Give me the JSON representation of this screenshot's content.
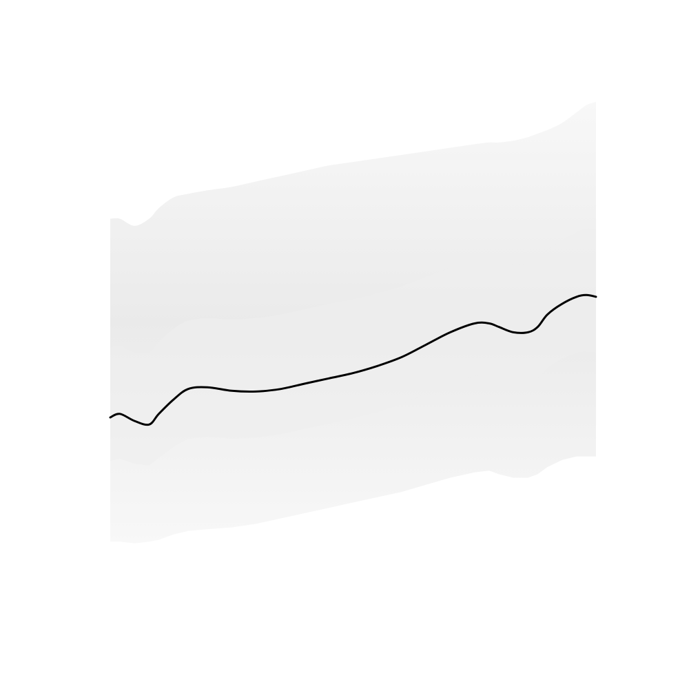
{
  "chart_data": {
    "type": "line",
    "title": "",
    "xlabel": "",
    "ylabel": "",
    "grid": false,
    "axes_visible": false,
    "legend": "none",
    "xlim": [
      0,
      1
    ],
    "ylim": [
      0,
      1
    ],
    "series": [
      {
        "line_color": "#000000",
        "x": [
          0.0,
          0.02,
          0.05,
          0.08,
          0.1,
          0.13,
          0.16,
          0.2,
          0.25,
          0.3,
          0.35,
          0.4,
          0.45,
          0.5,
          0.55,
          0.6,
          0.65,
          0.7,
          0.75,
          0.78,
          0.8,
          0.83,
          0.86,
          0.88,
          0.9,
          0.93,
          0.96,
          0.98,
          1.0
        ],
        "y": [
          0.27,
          0.28,
          0.26,
          0.25,
          0.28,
          0.32,
          0.35,
          0.355,
          0.345,
          0.343,
          0.35,
          0.365,
          0.38,
          0.395,
          0.415,
          0.44,
          0.475,
          0.51,
          0.535,
          0.535,
          0.525,
          0.51,
          0.51,
          0.525,
          0.56,
          0.59,
          0.61,
          0.615,
          0.61
        ]
      }
    ],
    "band": {
      "color": "#cccccc",
      "upper": [
        0.83,
        0.83,
        0.81,
        0.83,
        0.86,
        0.89,
        0.9,
        0.91,
        0.92,
        0.935,
        0.95,
        0.965,
        0.98,
        0.99,
        1.0,
        1.01,
        1.02,
        1.03,
        1.04,
        1.045,
        1.045,
        1.05,
        1.06,
        1.07,
        1.08,
        1.1,
        1.13,
        1.15,
        1.16
      ],
      "lower": [
        -0.08,
        -0.08,
        -0.085,
        -0.08,
        -0.075,
        -0.06,
        -0.05,
        -0.045,
        -0.04,
        -0.03,
        -0.015,
        0.0,
        0.015,
        0.03,
        0.045,
        0.06,
        0.08,
        0.1,
        0.115,
        0.12,
        0.11,
        0.1,
        0.1,
        0.11,
        0.13,
        0.15,
        0.16,
        0.16,
        0.16
      ]
    }
  }
}
